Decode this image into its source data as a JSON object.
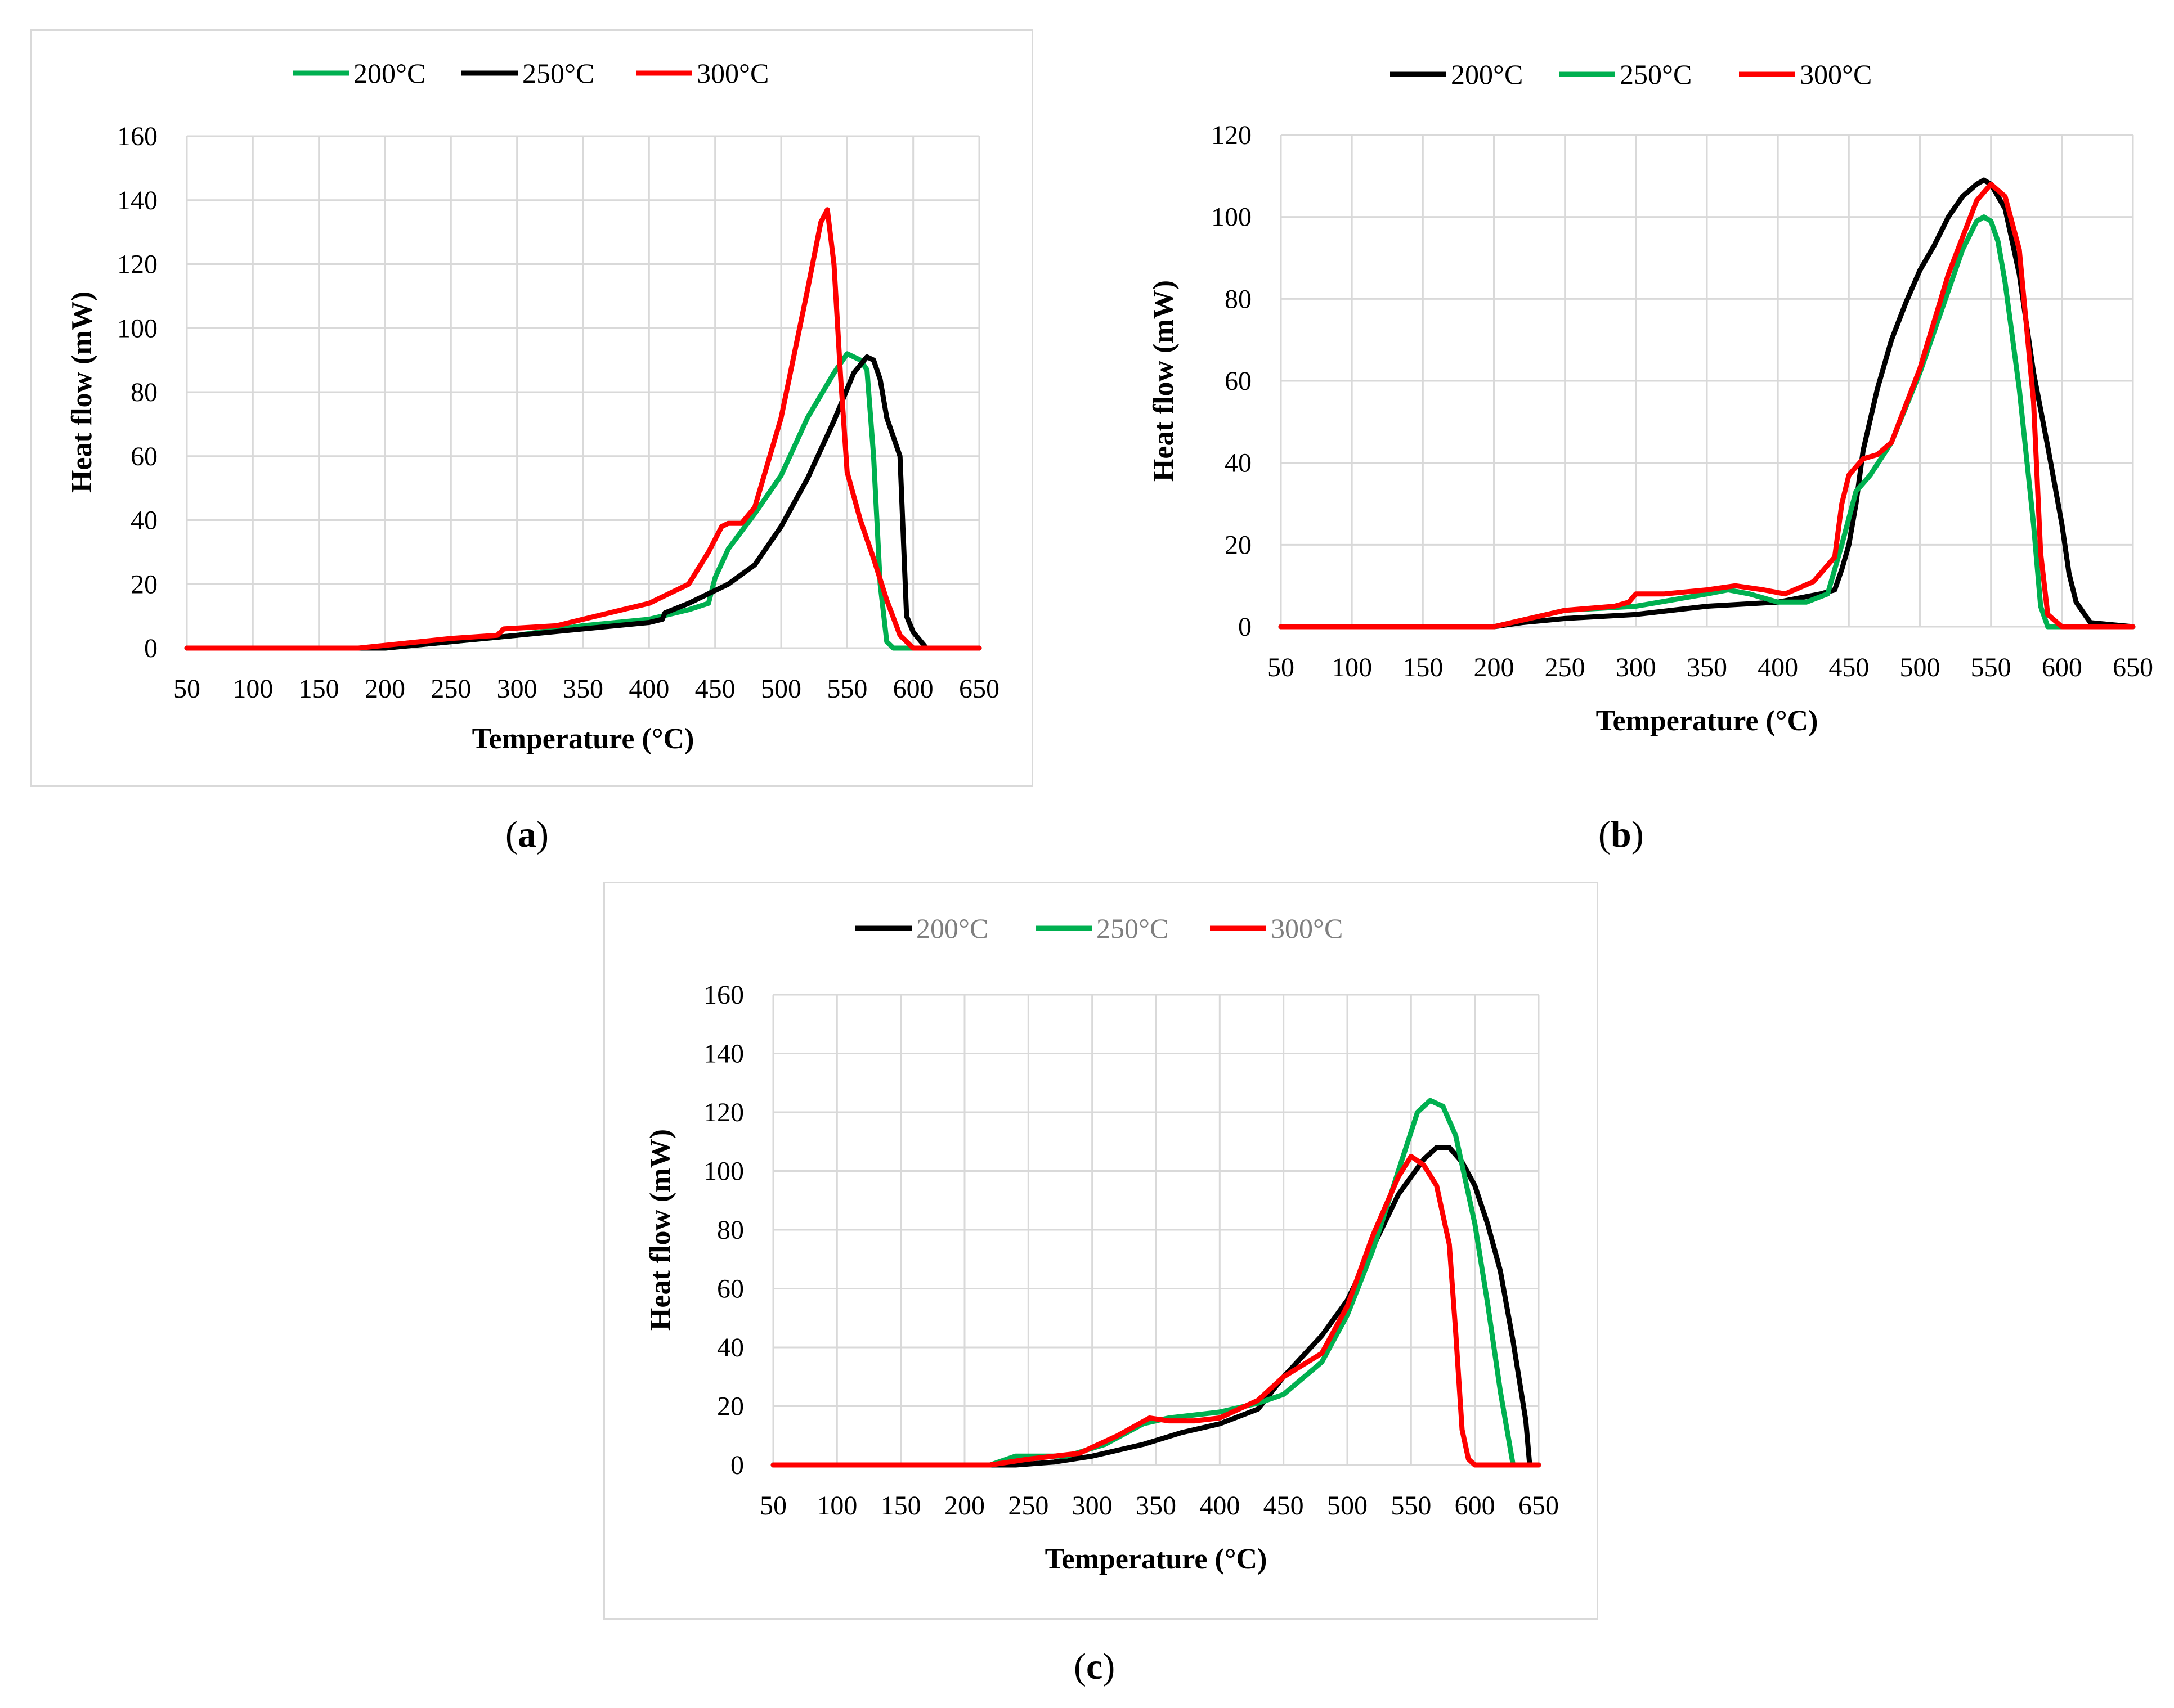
{
  "figure": {
    "panels": [
      {
        "label": "a"
      },
      {
        "label": "b"
      },
      {
        "label": "c"
      }
    ]
  },
  "chart_data": [
    {
      "id": "a",
      "type": "line",
      "title": "",
      "xlabel": "Temperature (°C)",
      "ylabel": "Heat flow (mW)",
      "xlim": [
        50,
        650
      ],
      "ylim": [
        0,
        160
      ],
      "xticks": [
        50,
        100,
        150,
        200,
        250,
        300,
        350,
        400,
        450,
        500,
        550,
        600,
        650
      ],
      "yticks": [
        0,
        20,
        40,
        60,
        80,
        100,
        120,
        140,
        160
      ],
      "grid": true,
      "legend": "top-center",
      "series": [
        {
          "name": "200°C",
          "color": "#00b050",
          "x": [
            50,
            200,
            250,
            300,
            350,
            400,
            430,
            445,
            450,
            460,
            480,
            500,
            520,
            540,
            550,
            560,
            565,
            570,
            575,
            580,
            585,
            600,
            650
          ],
          "y": [
            0,
            0,
            2,
            4,
            7,
            9,
            12,
            14,
            22,
            31,
            42,
            54,
            72,
            86,
            92,
            90,
            87,
            60,
            20,
            2,
            0,
            0,
            0
          ]
        },
        {
          "name": "250°C",
          "color": "#000000",
          "x": [
            50,
            200,
            250,
            300,
            350,
            400,
            410,
            412,
            430,
            460,
            480,
            500,
            520,
            540,
            555,
            565,
            570,
            575,
            580,
            590,
            593,
            595,
            600,
            610,
            650
          ],
          "y": [
            0,
            0,
            2,
            4,
            6,
            8,
            9,
            11,
            14,
            20,
            26,
            38,
            53,
            71,
            86,
            91,
            90,
            84,
            72,
            60,
            30,
            10,
            5,
            0,
            0
          ]
        },
        {
          "name": "300°C",
          "color": "#ff0000",
          "x": [
            50,
            180,
            250,
            285,
            290,
            330,
            370,
            400,
            430,
            445,
            455,
            460,
            470,
            480,
            500,
            520,
            530,
            535,
            540,
            545,
            550,
            560,
            570,
            580,
            590,
            600,
            650
          ],
          "y": [
            0,
            0,
            3,
            4,
            6,
            7,
            11,
            14,
            20,
            30,
            38,
            39,
            39,
            44,
            72,
            112,
            133,
            137,
            120,
            85,
            55,
            40,
            28,
            15,
            4,
            0,
            0
          ]
        }
      ]
    },
    {
      "id": "b",
      "type": "line",
      "title": "",
      "xlabel": "Temperature (°C)",
      "ylabel": "Heat flow (mW)",
      "xlim": [
        50,
        650
      ],
      "ylim": [
        0,
        120
      ],
      "xticks": [
        50,
        100,
        150,
        200,
        250,
        300,
        350,
        400,
        450,
        500,
        550,
        600,
        650
      ],
      "yticks": [
        0,
        20,
        40,
        60,
        80,
        100,
        120
      ],
      "grid": true,
      "legend": "top-center",
      "series": [
        {
          "name": "200°C",
          "color": "#000000",
          "x": [
            50,
            200,
            220,
            250,
            300,
            350,
            400,
            430,
            440,
            445,
            450,
            455,
            460,
            470,
            480,
            490,
            500,
            510,
            520,
            530,
            540,
            545,
            550,
            560,
            570,
            580,
            590,
            600,
            605,
            610,
            620,
            650
          ],
          "y": [
            0,
            0,
            1,
            2,
            3,
            5,
            6,
            8,
            9,
            14,
            20,
            30,
            43,
            58,
            70,
            79,
            87,
            93,
            100,
            105,
            108,
            109,
            108,
            102,
            86,
            62,
            44,
            25,
            13,
            6,
            1,
            0
          ]
        },
        {
          "name": "250°C",
          "color": "#00b050",
          "x": [
            50,
            200,
            250,
            300,
            350,
            365,
            380,
            400,
            420,
            435,
            445,
            455,
            465,
            480,
            500,
            520,
            530,
            540,
            545,
            550,
            555,
            560,
            570,
            580,
            585,
            590,
            650
          ],
          "y": [
            0,
            0,
            4,
            5,
            8,
            9,
            8,
            6,
            6,
            8,
            20,
            33,
            37,
            45,
            62,
            82,
            92,
            99,
            100,
            99,
            94,
            84,
            58,
            25,
            5,
            0,
            0
          ]
        },
        {
          "name": "300°C",
          "color": "#ff0000",
          "x": [
            50,
            200,
            250,
            285,
            295,
            300,
            320,
            350,
            370,
            390,
            405,
            425,
            440,
            445,
            450,
            460,
            470,
            480,
            500,
            520,
            540,
            550,
            560,
            570,
            580,
            585,
            590,
            600,
            650
          ],
          "y": [
            0,
            0,
            4,
            5,
            6,
            8,
            8,
            9,
            10,
            9,
            8,
            11,
            17,
            30,
            37,
            41,
            42,
            45,
            63,
            86,
            104,
            108,
            105,
            92,
            55,
            18,
            3,
            0,
            0
          ]
        }
      ]
    },
    {
      "id": "c",
      "type": "line",
      "title": "",
      "xlabel": "Temperature (°C)",
      "ylabel": "Heat flow (mW)",
      "xlim": [
        50,
        650
      ],
      "ylim": [
        0,
        160
      ],
      "xticks": [
        50,
        100,
        150,
        200,
        250,
        300,
        350,
        400,
        450,
        500,
        550,
        600,
        650
      ],
      "yticks": [
        0,
        20,
        40,
        60,
        80,
        100,
        120,
        140,
        160
      ],
      "grid": true,
      "legend": "top-center",
      "series": [
        {
          "name": "200°C",
          "color": "#000000",
          "x": [
            50,
            240,
            270,
            300,
            340,
            370,
            400,
            430,
            450,
            480,
            500,
            520,
            540,
            560,
            570,
            580,
            590,
            600,
            610,
            620,
            630,
            640,
            643,
            650
          ],
          "y": [
            0,
            0,
            1,
            3,
            7,
            11,
            14,
            19,
            30,
            44,
            56,
            74,
            92,
            104,
            108,
            108,
            103,
            95,
            82,
            66,
            42,
            15,
            0,
            0
          ]
        },
        {
          "name": "250°C",
          "color": "#00b050",
          "x": [
            50,
            220,
            240,
            280,
            310,
            340,
            360,
            400,
            430,
            450,
            480,
            500,
            520,
            540,
            555,
            565,
            575,
            585,
            600,
            610,
            620,
            630,
            650
          ],
          "y": [
            0,
            0,
            3,
            3,
            7,
            14,
            16,
            18,
            21,
            24,
            35,
            51,
            73,
            100,
            120,
            124,
            122,
            112,
            82,
            55,
            25,
            0,
            0
          ]
        },
        {
          "name": "300°C",
          "color": "#ff0000",
          "x": [
            50,
            220,
            250,
            290,
            320,
            345,
            360,
            380,
            400,
            430,
            450,
            480,
            500,
            520,
            540,
            550,
            560,
            570,
            580,
            585,
            590,
            595,
            600,
            650
          ],
          "y": [
            0,
            0,
            2,
            4,
            10,
            16,
            15,
            15,
            16,
            22,
            30,
            38,
            54,
            78,
            98,
            105,
            102,
            95,
            75,
            45,
            12,
            2,
            0,
            0
          ]
        }
      ]
    }
  ]
}
